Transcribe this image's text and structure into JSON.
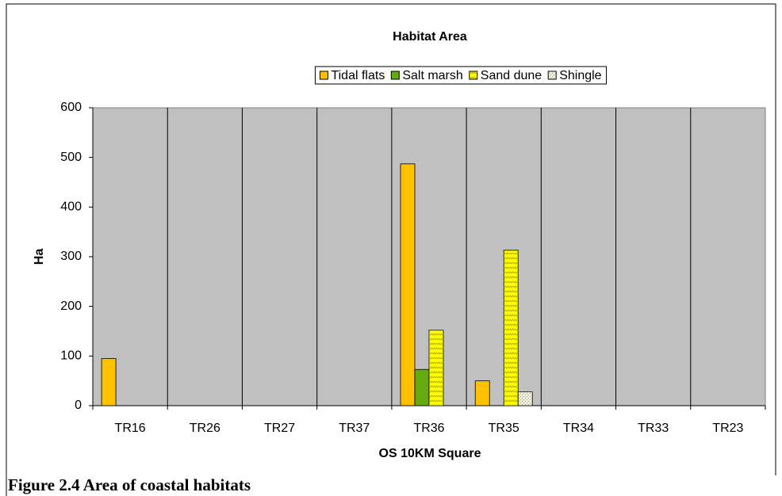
{
  "chart_data": {
    "type": "bar",
    "title": "Habitat Area",
    "x_label": "OS 10KM Square",
    "y_label": "Ha",
    "categories": [
      "TR16",
      "TR26",
      "TR27",
      "TR37",
      "TR36",
      "TR35",
      "TR34",
      "TR33",
      "TR23"
    ],
    "series": [
      {
        "name": "Tidal flats",
        "color": "#ffc000",
        "values": [
          95,
          0,
          0,
          0,
          487,
          50,
          0,
          0,
          0
        ]
      },
      {
        "name": "Salt marsh",
        "color": "#66aa11",
        "values": [
          0,
          0,
          0,
          0,
          73,
          0,
          0,
          0,
          0
        ]
      },
      {
        "name": "Sand dune",
        "color": "#ffff00",
        "values": [
          0,
          0,
          0,
          0,
          152,
          313,
          0,
          0,
          0
        ]
      },
      {
        "name": "Shingle",
        "color": "#f2f0c8",
        "values": [
          0,
          0,
          0,
          0,
          0,
          28,
          0,
          0,
          0
        ]
      }
    ],
    "ylim": [
      0,
      600
    ],
    "yticks": [
      0,
      100,
      200,
      300,
      400,
      500,
      600
    ],
    "plot_background": "#c0c0c0"
  },
  "caption": "Figure 2.4 Area of coastal habitats"
}
